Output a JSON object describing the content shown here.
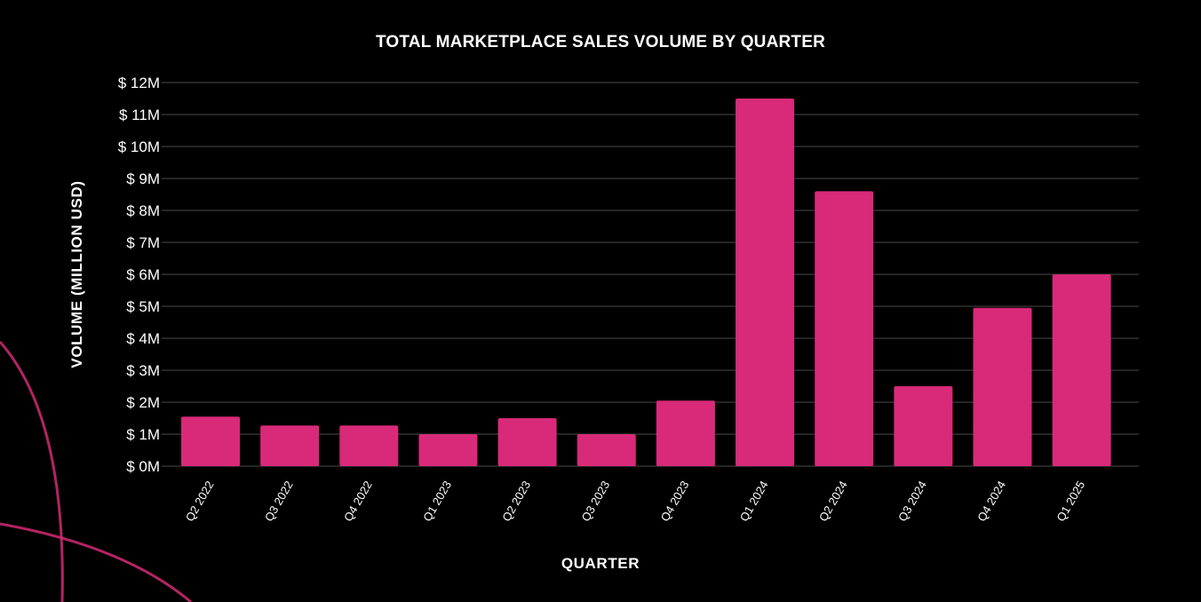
{
  "chart_data": {
    "type": "bar",
    "title": "TOTAL MARKETPLACE SALES VOLUME BY QUARTER",
    "xlabel": "QUARTER",
    "ylabel": "VOLUME (MILLION USD)",
    "categories": [
      "Q2 2022",
      "Q3 2022",
      "Q4 2022",
      "Q1 2023",
      "Q2 2023",
      "Q3 2023",
      "Q4 2023",
      "Q1 2024",
      "Q2 2024",
      "Q3 2024",
      "Q4 2024",
      "Q1 2025"
    ],
    "values": [
      1.55,
      1.27,
      1.27,
      1.0,
      1.5,
      1.0,
      2.05,
      11.5,
      8.6,
      2.5,
      4.95,
      6.0
    ],
    "ylim": [
      0,
      12
    ],
    "yticks": [
      0,
      1,
      2,
      3,
      4,
      5,
      6,
      7,
      8,
      9,
      10,
      11,
      12
    ],
    "ytick_labels": [
      "$ 0M",
      "$ 1M",
      "$ 2M",
      "$ 3M",
      "$ 4M",
      "$ 5M",
      "$ 6M",
      "$ 7M",
      "$ 8M",
      "$ 9M",
      "$ 10M",
      "$ 11M",
      "$ 12M"
    ],
    "grid": true,
    "legend": "none",
    "colors": {
      "bar": "#d82a79",
      "background": "#000000",
      "grid": "#4a4a4a",
      "text": "#ffffff",
      "decoration": "#d32a73"
    }
  }
}
